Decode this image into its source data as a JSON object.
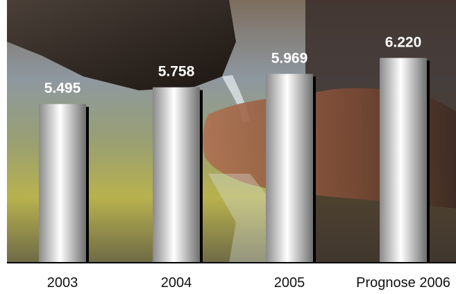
{
  "chart_data": {
    "type": "bar",
    "categories": [
      "2003",
      "2004",
      "2005",
      "Prognose 2006"
    ],
    "values": [
      5495,
      5758,
      5969,
      6220
    ],
    "value_labels": [
      "5.495",
      "5.758",
      "5.969",
      "6.220"
    ],
    "title": "",
    "xlabel": "",
    "ylabel": "",
    "ylim": [
      3000,
      6650
    ],
    "grid": false,
    "legend": "none",
    "background": "photo of hands under water flowing from a wooden spout",
    "colors": {
      "bar_light": "#ffffff",
      "bar_mid": "#c8c8c8",
      "bar_dark": "#7a7a7a",
      "shadow": "#000000",
      "label": "#ffffff",
      "axis": "#000000"
    }
  }
}
